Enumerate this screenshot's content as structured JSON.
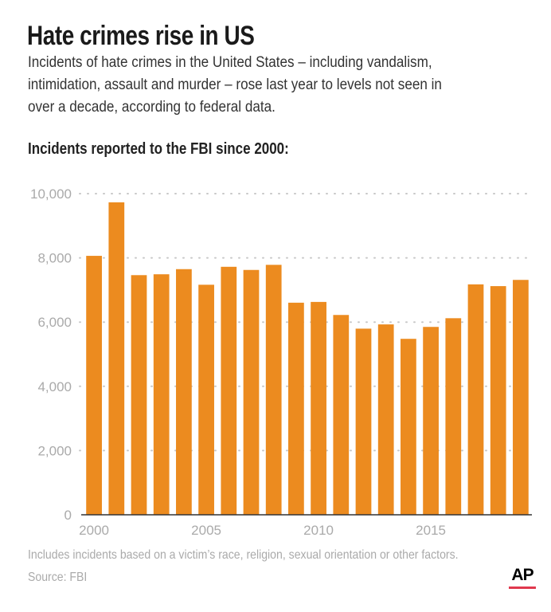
{
  "title": "Hate crimes rise in US",
  "subtitle_lines": [
    "Incidents of hate crimes in the United States – including vandalism,",
    "intimidation, assault and murder – rose last year to levels not seen in",
    "over a decade, according to federal data."
  ],
  "subheading": "Incidents reported to the FBI since 2000:",
  "footnote": "Includes incidents based on a victim’s race, religion, sexual orientation or other factors.",
  "source": "Source: FBI",
  "logo": "AP",
  "colors": {
    "bar": "#ec8b1f",
    "grid": "#c8c8c8",
    "baseline": "#333333",
    "logo_underline": "#e0384e"
  },
  "chart_data": {
    "type": "bar",
    "title": "Incidents reported to the FBI since 2000:",
    "categories": [
      2000,
      2001,
      2002,
      2003,
      2004,
      2005,
      2006,
      2007,
      2008,
      2009,
      2010,
      2011,
      2012,
      2013,
      2014,
      2015,
      2016,
      2017,
      2018,
      2019
    ],
    "values": [
      8063,
      9730,
      7462,
      7489,
      7649,
      7163,
      7722,
      7624,
      7783,
      6604,
      6628,
      6222,
      5796,
      5928,
      5479,
      5850,
      6121,
      7175,
      7120,
      7314
    ],
    "ylim": [
      0,
      10000
    ],
    "yticks": [
      0,
      2000,
      4000,
      6000,
      8000,
      10000
    ],
    "ytick_labels": [
      "0",
      "2,000",
      "4,000",
      "6,000",
      "8,000",
      "10,000"
    ],
    "xtick_labels": [
      "2000",
      "2005",
      "2010",
      "2015"
    ],
    "xtick_values": [
      2000,
      2005,
      2010,
      2015
    ],
    "grid": "horizontal dotted",
    "legend": "none"
  }
}
